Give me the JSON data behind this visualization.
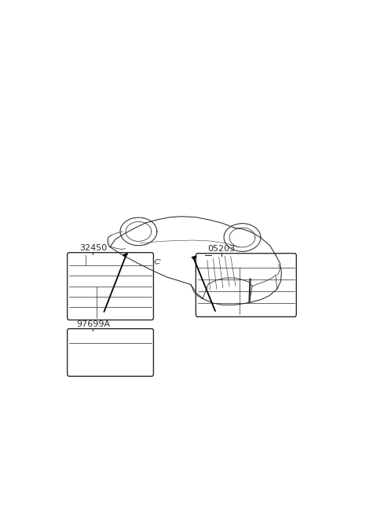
{
  "bg_color": "#ffffff",
  "line_color": "#2a2a2a",
  "label_32450": "32450",
  "label_05203": "05203",
  "label_97699A": "97699A",
  "font_size_parts": 8
}
